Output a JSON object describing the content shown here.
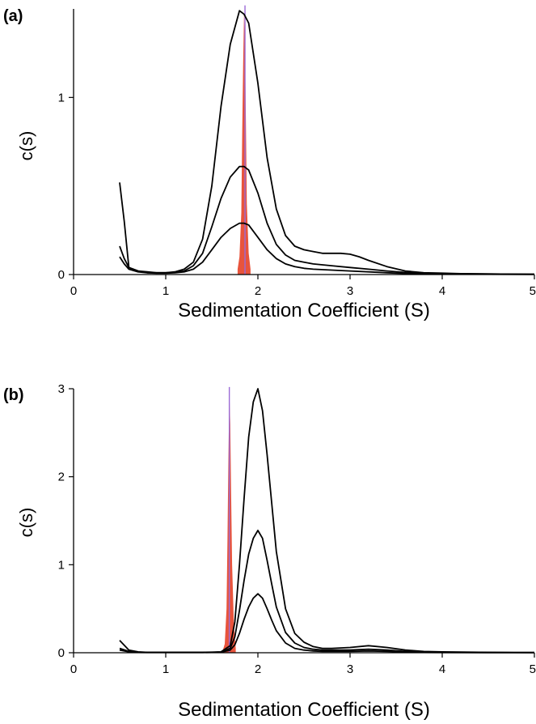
{
  "chart_data": [
    {
      "type": "line",
      "panel_label": "(a)",
      "xlabel": "Sedimentation Coefficient (S)",
      "ylabel": "c(s)",
      "xlim": [
        0,
        5
      ],
      "ylim": [
        0,
        1.5
      ],
      "xticks": [
        0,
        1,
        2,
        3,
        4,
        5
      ],
      "xtick_labels": [
        "0",
        "1",
        "2",
        "3",
        "4",
        "5"
      ],
      "yticks": [
        0,
        1
      ],
      "ytick_labels": [
        "0",
        "1"
      ],
      "grid": false,
      "colors": {
        "curve": "#000000",
        "spike": "#e8543c",
        "spike_line": "#9b6ad6"
      },
      "series": [
        {
          "x": [
            0.5,
            0.55,
            0.6,
            0.7,
            0.8,
            0.9,
            1.0,
            1.1,
            1.2,
            1.3,
            1.4,
            1.5,
            1.6,
            1.7,
            1.8,
            1.85,
            1.9,
            2.0,
            2.1,
            2.2,
            2.3,
            2.4,
            2.5,
            2.6,
            2.7,
            2.8,
            2.9,
            3.0,
            3.1,
            3.2,
            3.4,
            3.6,
            3.8,
            4.0,
            4.2,
            4.5,
            5.0
          ],
          "y": [
            0.52,
            0.3,
            0.04,
            0.02,
            0.01,
            0.01,
            0.01,
            0.015,
            0.03,
            0.07,
            0.2,
            0.5,
            0.95,
            1.3,
            1.49,
            1.47,
            1.42,
            1.08,
            0.66,
            0.37,
            0.22,
            0.16,
            0.14,
            0.13,
            0.12,
            0.12,
            0.12,
            0.115,
            0.1,
            0.08,
            0.045,
            0.02,
            0.01,
            0.008,
            0.005,
            0.003,
            0.002
          ]
        },
        {
          "x": [
            0.5,
            0.55,
            0.6,
            0.7,
            0.8,
            0.9,
            1.0,
            1.1,
            1.2,
            1.3,
            1.4,
            1.5,
            1.6,
            1.7,
            1.8,
            1.85,
            1.9,
            2.0,
            2.1,
            2.2,
            2.3,
            2.4,
            2.5,
            2.6,
            2.8,
            3.0,
            3.2,
            3.4,
            3.6,
            3.8,
            4.0,
            4.5,
            5.0
          ],
          "y": [
            0.16,
            0.09,
            0.04,
            0.02,
            0.015,
            0.01,
            0.01,
            0.012,
            0.02,
            0.05,
            0.12,
            0.27,
            0.43,
            0.55,
            0.61,
            0.61,
            0.59,
            0.46,
            0.29,
            0.17,
            0.11,
            0.08,
            0.07,
            0.06,
            0.05,
            0.04,
            0.03,
            0.02,
            0.012,
            0.007,
            0.005,
            0.003,
            0.002
          ]
        },
        {
          "x": [
            0.5,
            0.55,
            0.6,
            0.7,
            0.8,
            0.9,
            1.0,
            1.1,
            1.2,
            1.3,
            1.4,
            1.5,
            1.6,
            1.7,
            1.8,
            1.85,
            1.9,
            2.0,
            2.1,
            2.2,
            2.3,
            2.4,
            2.5,
            2.6,
            2.8,
            3.0,
            3.2,
            3.4,
            3.6,
            3.8,
            4.0,
            4.5,
            5.0
          ],
          "y": [
            0.1,
            0.06,
            0.03,
            0.015,
            0.01,
            0.008,
            0.008,
            0.01,
            0.015,
            0.03,
            0.07,
            0.14,
            0.21,
            0.26,
            0.29,
            0.29,
            0.28,
            0.21,
            0.14,
            0.09,
            0.06,
            0.045,
            0.035,
            0.03,
            0.025,
            0.02,
            0.015,
            0.01,
            0.006,
            0.004,
            0.003,
            0.002,
            0.001
          ]
        }
      ],
      "spike": {
        "x": [
          1.78,
          1.8,
          1.82,
          1.83,
          1.84,
          1.85,
          1.86,
          1.87,
          1.88,
          1.9,
          1.92
        ],
        "y": [
          0.03,
          0.1,
          0.35,
          0.8,
          1.2,
          1.48,
          1.3,
          0.85,
          0.4,
          0.12,
          0.03
        ],
        "line_x": 1.86,
        "line_top": 1.52
      }
    },
    {
      "type": "line",
      "panel_label": "(b)",
      "xlabel": "Sedimentation Coefficient (S)",
      "ylabel": "c(s)",
      "xlim": [
        0,
        5
      ],
      "ylim": [
        0,
        3
      ],
      "xticks": [
        0,
        1,
        2,
        3,
        4,
        5
      ],
      "xtick_labels": [
        "0",
        "1",
        "2",
        "3",
        "4",
        "5"
      ],
      "yticks": [
        0,
        1,
        2,
        3
      ],
      "ytick_labels": [
        "0",
        "1",
        "2",
        "3"
      ],
      "grid": false,
      "colors": {
        "curve": "#000000",
        "spike": "#e8543c",
        "spike_line": "#9b6ad6"
      },
      "series": [
        {
          "x": [
            0.5,
            0.6,
            0.7,
            0.8,
            1.0,
            1.2,
            1.4,
            1.5,
            1.6,
            1.7,
            1.75,
            1.8,
            1.85,
            1.9,
            1.95,
            2.0,
            2.05,
            2.1,
            2.15,
            2.2,
            2.3,
            2.4,
            2.5,
            2.6,
            2.7,
            2.8,
            3.0,
            3.2,
            3.4,
            3.6,
            3.8,
            4.0,
            4.5,
            5.0
          ],
          "y": [
            0.14,
            0.03,
            0.01,
            0.005,
            0.005,
            0.005,
            0.005,
            0.006,
            0.01,
            0.08,
            0.35,
            1.0,
            1.75,
            2.45,
            2.85,
            3.0,
            2.75,
            2.25,
            1.7,
            1.15,
            0.5,
            0.22,
            0.12,
            0.07,
            0.05,
            0.05,
            0.06,
            0.08,
            0.06,
            0.03,
            0.015,
            0.01,
            0.005,
            0.003
          ]
        },
        {
          "x": [
            0.5,
            0.6,
            0.7,
            0.8,
            1.0,
            1.2,
            1.4,
            1.5,
            1.6,
            1.7,
            1.75,
            1.8,
            1.85,
            1.9,
            1.95,
            2.0,
            2.05,
            2.1,
            2.15,
            2.2,
            2.3,
            2.4,
            2.5,
            2.6,
            2.7,
            2.8,
            3.0,
            3.2,
            3.4,
            3.6,
            3.8,
            4.0,
            4.5,
            5.0
          ],
          "y": [
            0.05,
            0.015,
            0.006,
            0.004,
            0.004,
            0.004,
            0.004,
            0.005,
            0.008,
            0.05,
            0.18,
            0.48,
            0.82,
            1.12,
            1.3,
            1.39,
            1.3,
            1.05,
            0.78,
            0.52,
            0.23,
            0.11,
            0.06,
            0.04,
            0.03,
            0.03,
            0.03,
            0.04,
            0.03,
            0.015,
            0.008,
            0.005,
            0.003,
            0.002
          ]
        },
        {
          "x": [
            0.5,
            0.6,
            0.7,
            0.8,
            1.0,
            1.2,
            1.4,
            1.5,
            1.6,
            1.7,
            1.75,
            1.8,
            1.85,
            1.9,
            1.95,
            2.0,
            2.05,
            2.1,
            2.15,
            2.2,
            2.3,
            2.4,
            2.5,
            2.6,
            2.7,
            2.8,
            3.0,
            3.2,
            3.4,
            3.6,
            3.8,
            4.0,
            4.5,
            5.0
          ],
          "y": [
            0.03,
            0.01,
            0.004,
            0.003,
            0.003,
            0.003,
            0.003,
            0.004,
            0.006,
            0.03,
            0.09,
            0.22,
            0.38,
            0.52,
            0.62,
            0.67,
            0.62,
            0.5,
            0.37,
            0.25,
            0.11,
            0.05,
            0.03,
            0.02,
            0.015,
            0.015,
            0.015,
            0.02,
            0.015,
            0.008,
            0.004,
            0.003,
            0.002,
            0.001
          ]
        }
      ],
      "spike": {
        "x": [
          1.62,
          1.64,
          1.66,
          1.67,
          1.68,
          1.69,
          1.7,
          1.71,
          1.72,
          1.74,
          1.76
        ],
        "y": [
          0.03,
          0.1,
          0.5,
          1.3,
          2.2,
          2.95,
          2.6,
          1.8,
          1.0,
          0.3,
          0.05
        ],
        "line_x": 1.69,
        "line_top": 3.02
      }
    }
  ]
}
